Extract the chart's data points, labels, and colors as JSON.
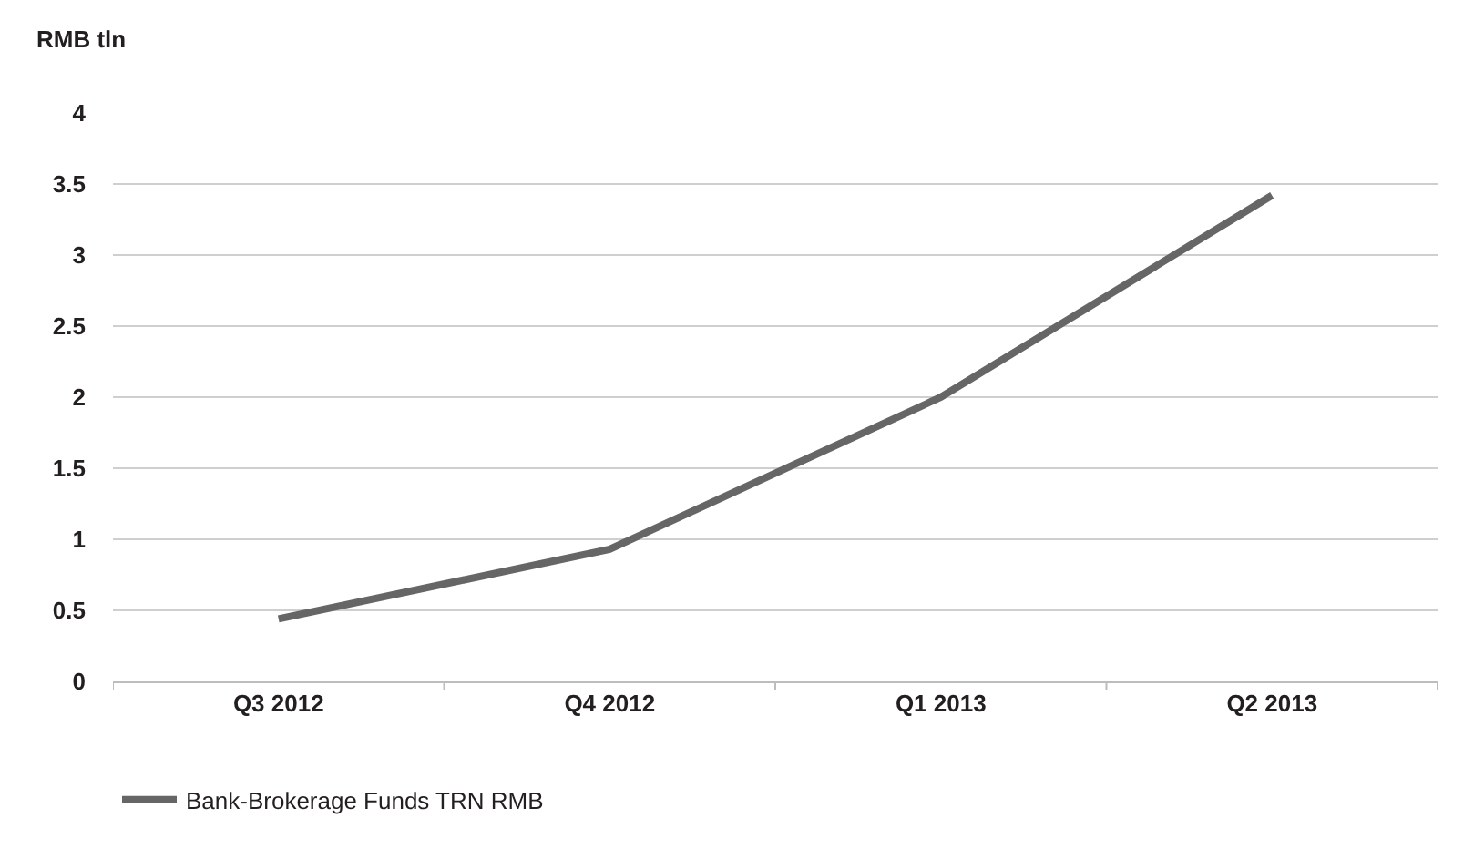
{
  "chart_data": {
    "type": "line",
    "ylabel": "RMB tln",
    "categories": [
      "Q3 2012",
      "Q4 2012",
      "Q1 2013",
      "Q2 2013"
    ],
    "series": [
      {
        "name": "Bank-Brokerage Funds TRN RMB",
        "color": "#666666",
        "values": [
          0.44,
          0.93,
          2.0,
          3.42
        ]
      }
    ],
    "ylim": [
      0,
      4
    ],
    "yticks": [
      0,
      0.5,
      1,
      1.5,
      2,
      2.5,
      3,
      3.5,
      4
    ],
    "grid": "y",
    "legend": "bottom left",
    "marker": "none",
    "line_style": "solid"
  }
}
